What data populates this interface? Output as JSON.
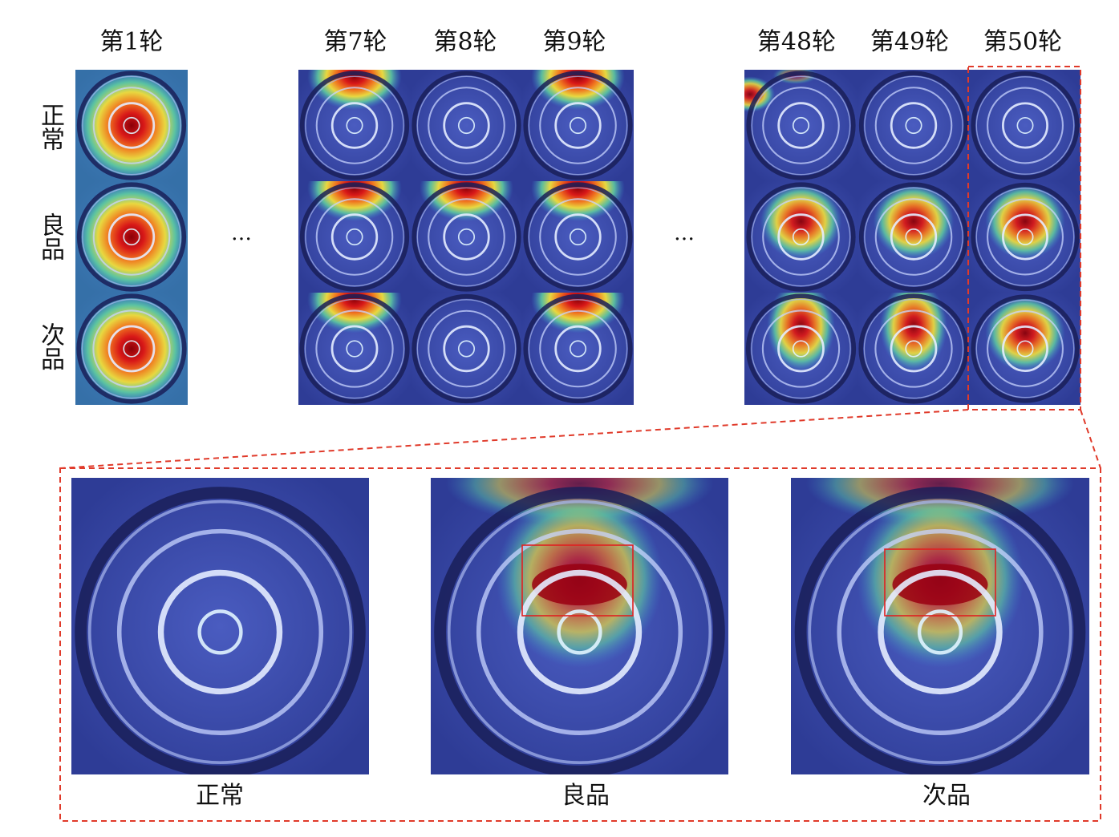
{
  "rounds": [
    {
      "label": "第1轮"
    },
    {
      "label": "第7轮"
    },
    {
      "label": "第8轮"
    },
    {
      "label": "第9轮"
    },
    {
      "label": "第48轮"
    },
    {
      "label": "第49轮"
    },
    {
      "label": "第50轮"
    }
  ],
  "rows": [
    {
      "label": "正常"
    },
    {
      "label": "良品"
    },
    {
      "label": "次品"
    }
  ],
  "ellipsis": "…",
  "detail_captions": [
    "正常",
    "良品",
    "次品"
  ],
  "colors": {
    "dashed_border": "#e03a2a",
    "highlight_box": "#e02020",
    "heat_hot": "#9a0000",
    "heat_base": "#3848a8"
  }
}
